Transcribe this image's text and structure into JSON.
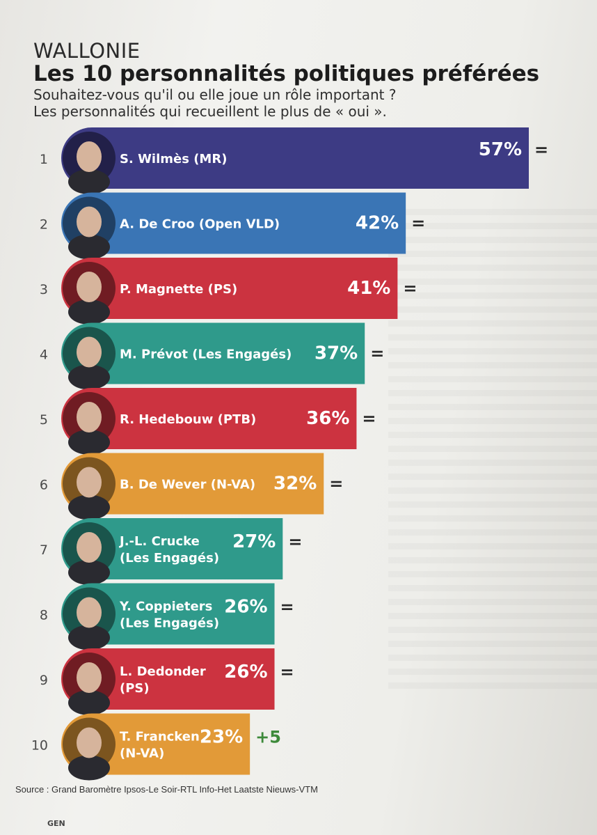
{
  "header": {
    "region": "WALLONIE",
    "title": "Les 10 personnalités politiques préférées",
    "subtitle_line1": "Souhaitez-vous qu'il ou elle joue un rôle important ?",
    "subtitle_line2": "Les personnalités qui recueillent le plus de « oui »."
  },
  "chart_data": {
    "type": "bar",
    "orientation": "horizontal",
    "title": "Les 10 personnalités politiques préférées",
    "unit": "%",
    "xlim": [
      0,
      57
    ],
    "categories": [
      "S. Wilmès (MR)",
      "A. De Croo (Open VLD)",
      "P. Magnette (PS)",
      "M. Prévot (Les Engagés)",
      "R. Hedebouw (PTB)",
      "B. De Wever (N-VA)",
      "J.-L. Crucke (Les Engagés)",
      "Y. Coppieters (Les Engagés)",
      "L. Dedonder (PS)",
      "T. Francken (N-VA)"
    ],
    "values": [
      57,
      42,
      41,
      37,
      36,
      32,
      27,
      26,
      26,
      23
    ],
    "bars": [
      {
        "rank": "1",
        "label_lines": [
          "S. Wilmès (MR)"
        ],
        "value_label": "57%",
        "change": "=",
        "color": "#3d3b84"
      },
      {
        "rank": "2",
        "label_lines": [
          "A. De Croo (Open VLD)"
        ],
        "value_label": "42%",
        "change": "=",
        "color": "#3a75b5"
      },
      {
        "rank": "3",
        "label_lines": [
          "P. Magnette (PS)"
        ],
        "value_label": "41%",
        "change": "=",
        "color": "#cb3340"
      },
      {
        "rank": "4",
        "label_lines": [
          "M. Prévot (Les Engagés)"
        ],
        "value_label": "37%",
        "change": "=",
        "color": "#2f9a8b"
      },
      {
        "rank": "5",
        "label_lines": [
          "R. Hedebouw (PTB)"
        ],
        "value_label": "36%",
        "change": "=",
        "color": "#cc3340"
      },
      {
        "rank": "6",
        "label_lines": [
          "B. De Wever (N-VA)"
        ],
        "value_label": "32%",
        "change": "=",
        "color": "#e29a38"
      },
      {
        "rank": "7",
        "label_lines": [
          "J.-L. Crucke",
          "(Les Engagés)"
        ],
        "value_label": "27%",
        "change": "=",
        "color": "#2f9a8b"
      },
      {
        "rank": "8",
        "label_lines": [
          "Y. Coppieters",
          "(Les Engagés)"
        ],
        "value_label": "26%",
        "change": "=",
        "color": "#2f9a8b"
      },
      {
        "rank": "9",
        "label_lines": [
          "L. Dedonder",
          "(PS)"
        ],
        "value_label": "26%",
        "change": "=",
        "color": "#cc3340"
      },
      {
        "rank": "10",
        "label_lines": [
          "T. Francken",
          "(N-VA)"
        ],
        "value_label": "23%",
        "change": "+5",
        "color": "#e29a38",
        "change_color": "#3d8a3a"
      }
    ]
  },
  "source": "Source : Grand Baromètre Ipsos-Le Soir-RTL Info-Het Laatste Nieuws-VTM",
  "footer": {
    "section": "GEN"
  }
}
